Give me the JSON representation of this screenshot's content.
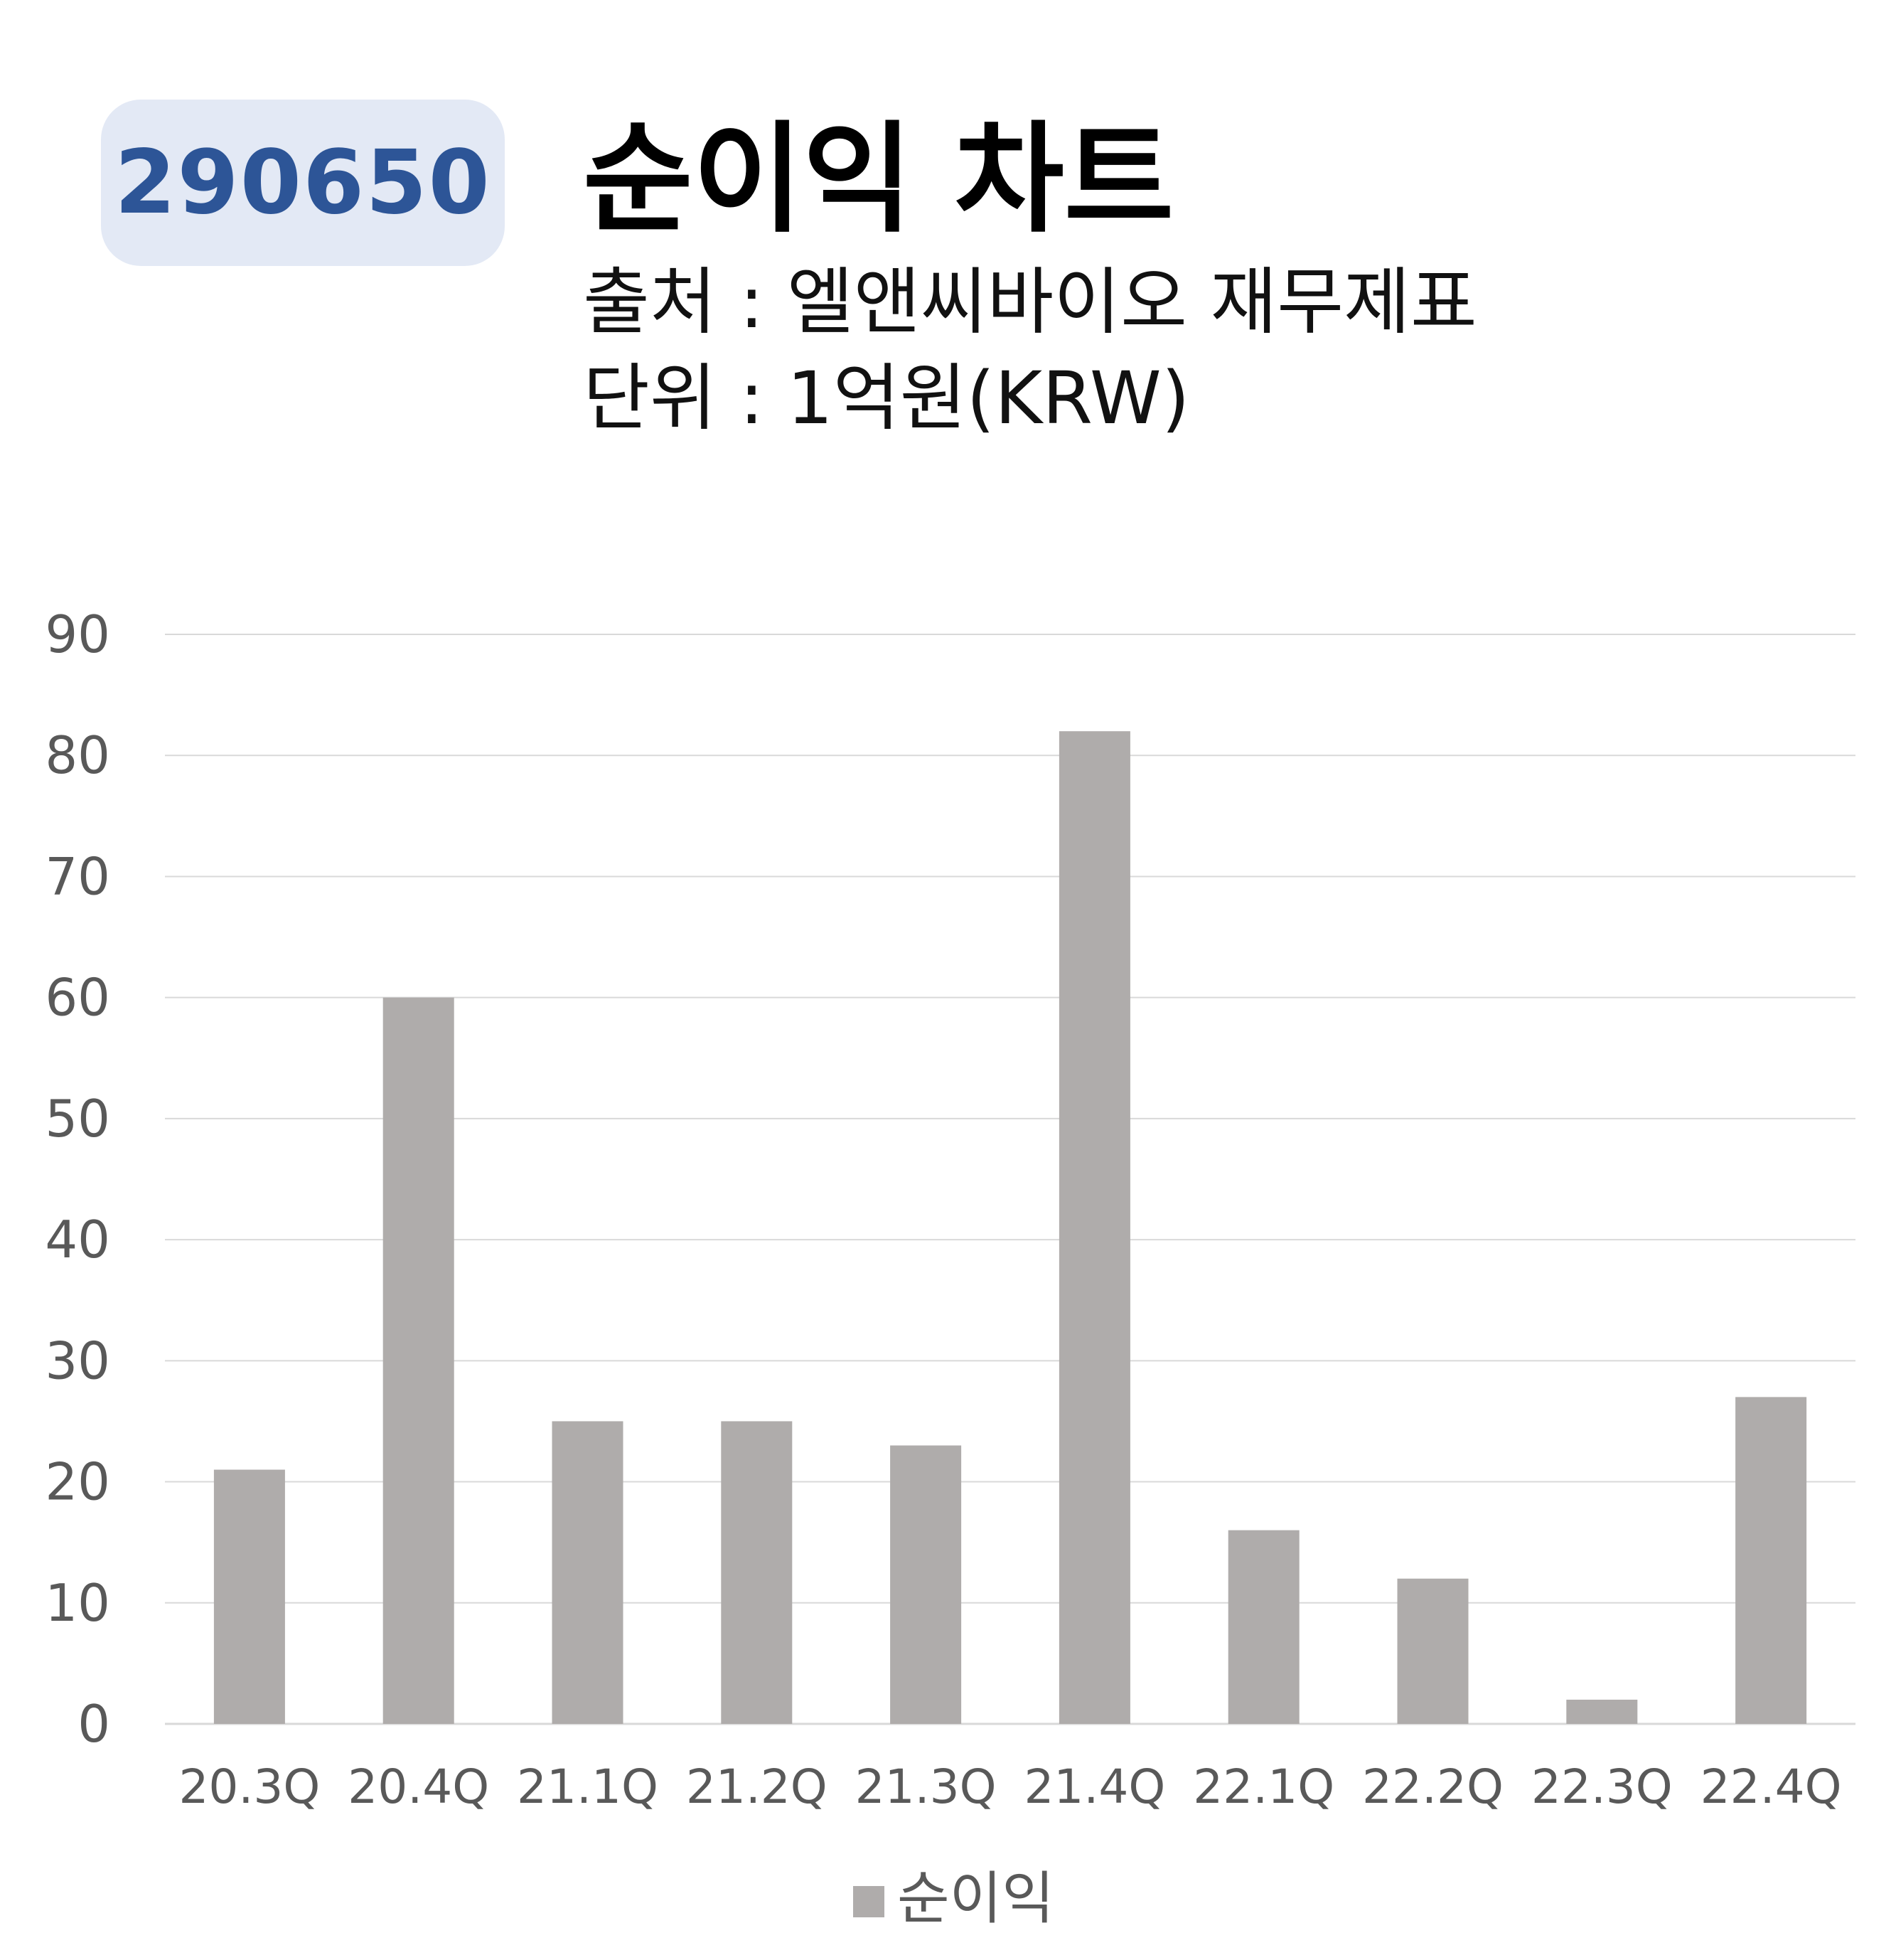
{
  "header": {
    "code": "290650",
    "title": "순이익 차트",
    "source": "출처 : 엘앤씨바이오 재무제표",
    "unit": "단위 : 1억원(KRW)"
  },
  "chart_data": {
    "type": "bar",
    "categories": [
      "20.3Q",
      "20.4Q",
      "21.1Q",
      "21.2Q",
      "21.3Q",
      "21.4Q",
      "22.1Q",
      "22.2Q",
      "22.3Q",
      "22.4Q"
    ],
    "series": [
      {
        "name": "순이익",
        "values": [
          21,
          60,
          25,
          25,
          23,
          82,
          16,
          12,
          2,
          27
        ],
        "color": "#afacab"
      }
    ],
    "ylim": [
      0,
      90
    ],
    "yticks": [
      "0",
      "10",
      "20",
      "30",
      "40",
      "50",
      "60",
      "70",
      "80",
      "90"
    ],
    "grid": true,
    "gridColor": "#d9d9d9",
    "legend": "bottom"
  }
}
